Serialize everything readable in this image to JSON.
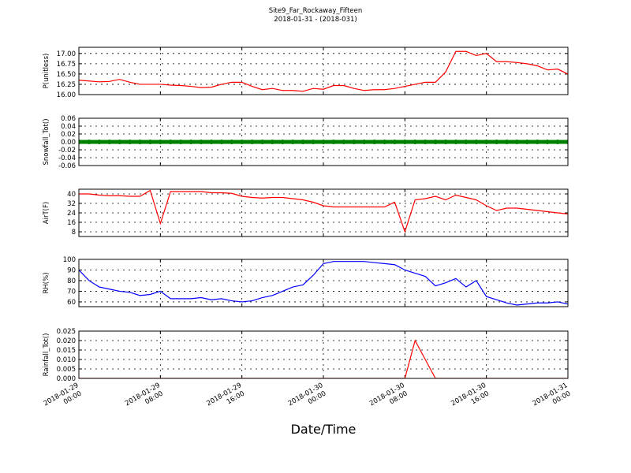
{
  "chart_data": {
    "type": "line",
    "title": "Site9_Far_Rockaway_Fifteen",
    "subtitle": "2018-01-31 - (2018-031)",
    "xlabel": "Date/Time",
    "xlim": [
      "2018-01-29 00:00",
      "2018-01-31 00:00"
    ],
    "xticks": [
      "2018-01-29 00:00",
      "2018-01-29 08:00",
      "2018-01-29 16:00",
      "2018-01-30 00:00",
      "2018-01-30 08:00",
      "2018-01-30 16:00",
      "2018-01-31 00:00"
    ],
    "grid": true,
    "x": [
      "2018-01-29 00:00",
      "2018-01-29 01:00",
      "2018-01-29 02:00",
      "2018-01-29 03:00",
      "2018-01-29 04:00",
      "2018-01-29 05:00",
      "2018-01-29 06:00",
      "2018-01-29 07:00",
      "2018-01-29 08:00",
      "2018-01-29 09:00",
      "2018-01-29 10:00",
      "2018-01-29 11:00",
      "2018-01-29 12:00",
      "2018-01-29 13:00",
      "2018-01-29 14:00",
      "2018-01-29 15:00",
      "2018-01-29 16:00",
      "2018-01-29 17:00",
      "2018-01-29 18:00",
      "2018-01-29 19:00",
      "2018-01-29 20:00",
      "2018-01-29 21:00",
      "2018-01-29 22:00",
      "2018-01-29 23:00",
      "2018-01-30 00:00",
      "2018-01-30 01:00",
      "2018-01-30 02:00",
      "2018-01-30 03:00",
      "2018-01-30 04:00",
      "2018-01-30 05:00",
      "2018-01-30 06:00",
      "2018-01-30 07:00",
      "2018-01-30 08:00",
      "2018-01-30 09:00",
      "2018-01-30 10:00",
      "2018-01-30 11:00",
      "2018-01-30 12:00",
      "2018-01-30 13:00",
      "2018-01-30 14:00",
      "2018-01-30 15:00",
      "2018-01-30 16:00",
      "2018-01-30 17:00",
      "2018-01-30 18:00",
      "2018-01-30 19:00",
      "2018-01-30 20:00",
      "2018-01-30 21:00",
      "2018-01-30 22:00",
      "2018-01-30 23:00",
      "2018-01-31 00:00"
    ],
    "panels": [
      {
        "ylabel": "P(unitless)",
        "ylim": [
          16.0,
          17.15
        ],
        "yticks": [
          {
            "value": 16.0,
            "label": "16.00"
          },
          {
            "value": 16.25,
            "label": "16.25"
          },
          {
            "value": 16.5,
            "label": "16.50"
          },
          {
            "value": 16.75,
            "label": "16.75"
          },
          {
            "value": 17.0,
            "label": "17.00"
          }
        ],
        "series": [
          {
            "color": "#ff0000",
            "marker": false,
            "values": [
              16.35,
              16.33,
              16.31,
              16.32,
              16.37,
              16.3,
              16.25,
              16.25,
              16.25,
              16.23,
              16.22,
              16.2,
              16.17,
              16.18,
              16.25,
              16.3,
              16.3,
              16.2,
              16.12,
              16.15,
              16.1,
              16.1,
              16.08,
              16.15,
              16.13,
              16.22,
              16.22,
              16.15,
              16.1,
              16.12,
              16.12,
              16.15,
              16.2,
              16.25,
              16.3,
              16.3,
              16.55,
              17.05,
              17.05,
              16.95,
              17.0,
              16.8,
              16.8,
              16.78,
              16.75,
              16.7,
              16.6,
              16.62,
              16.5
            ]
          }
        ]
      },
      {
        "ylabel": "Snowfall_Tot()",
        "ylim": [
          -0.06,
          0.06
        ],
        "yticks": [
          {
            "value": -0.06,
            "label": "-0.06"
          },
          {
            "value": -0.04,
            "label": "-0.04"
          },
          {
            "value": -0.02,
            "label": "-0.02"
          },
          {
            "value": 0,
            "label": "0.00"
          },
          {
            "value": 0.02,
            "label": "0.02"
          },
          {
            "value": 0.04,
            "label": "0.04"
          },
          {
            "value": 0.06,
            "label": "0.06"
          }
        ],
        "series": [
          {
            "color": "#008000",
            "marker": true,
            "values": [
              0,
              0,
              0,
              0,
              0,
              0,
              0,
              0,
              0,
              0,
              0,
              0,
              0,
              0,
              0,
              0,
              0,
              0,
              0,
              0,
              0,
              0,
              0,
              0,
              0,
              0,
              0,
              0,
              0,
              0,
              0,
              0,
              0,
              0,
              0,
              0,
              0,
              0,
              0,
              0,
              0,
              0,
              0,
              0,
              0,
              0,
              0,
              0,
              0
            ]
          }
        ]
      },
      {
        "ylabel": "AirT(F)",
        "ylim": [
          4,
          44
        ],
        "yticks": [
          8,
          16,
          24,
          32,
          40
        ],
        "series": [
          {
            "color": "#ff0000",
            "marker": false,
            "values": [
              40,
              40,
              39,
              38.5,
              38.5,
              38,
              38,
              43,
              15,
              42,
              42,
              42,
              42,
              41,
              41,
              40.5,
              38,
              37,
              36.5,
              37,
              37,
              36,
              35,
              33,
              30,
              29,
              29,
              29,
              29,
              29,
              29,
              33,
              8,
              35,
              36,
              38,
              35,
              39,
              37,
              35,
              30,
              26,
              28,
              28,
              27,
              26,
              25,
              24,
              23
            ]
          }
        ]
      },
      {
        "ylabel": "RH(%)",
        "ylim": [
          55.5,
          100
        ],
        "yticks": [
          60,
          70,
          80,
          90,
          100
        ],
        "series": [
          {
            "color": "#0000ff",
            "marker": false,
            "values": [
              90,
              80,
              74,
              72,
              70,
              69,
              66,
              67,
              70,
              63,
              63,
              63,
              64,
              62,
              63,
              61,
              60,
              61,
              64,
              66,
              70,
              74,
              76,
              85,
              96,
              98,
              98,
              98,
              98,
              97,
              96,
              95,
              90,
              87,
              84,
              75,
              78,
              82,
              74,
              80,
              65,
              62,
              59,
              57,
              58,
              59,
              59,
              60,
              58
            ]
          }
        ]
      },
      {
        "ylabel": "Rainfall_Tot()",
        "ylim": [
          0,
          0.025
        ],
        "yticks": [
          {
            "value": 0,
            "label": "0.000"
          },
          {
            "value": 0.005,
            "label": "0.005"
          },
          {
            "value": 0.01,
            "label": "0.010"
          },
          {
            "value": 0.015,
            "label": "0.015"
          },
          {
            "value": 0.02,
            "label": "0.020"
          },
          {
            "value": 0.025,
            "label": "0.025"
          }
        ],
        "series": [
          {
            "color": "#ff0000",
            "marker": false,
            "values": [
              0,
              0,
              0,
              0,
              0,
              0,
              0,
              0,
              0,
              0,
              0,
              0,
              0,
              0,
              0,
              0,
              0,
              0,
              0,
              0,
              0,
              0,
              0,
              0,
              0,
              0,
              0,
              0,
              0,
              0,
              0,
              0,
              0,
              0.02,
              0.01,
              0,
              0,
              0,
              0,
              0,
              0,
              0,
              0,
              0,
              0,
              0,
              0,
              0,
              0
            ]
          }
        ]
      }
    ]
  }
}
